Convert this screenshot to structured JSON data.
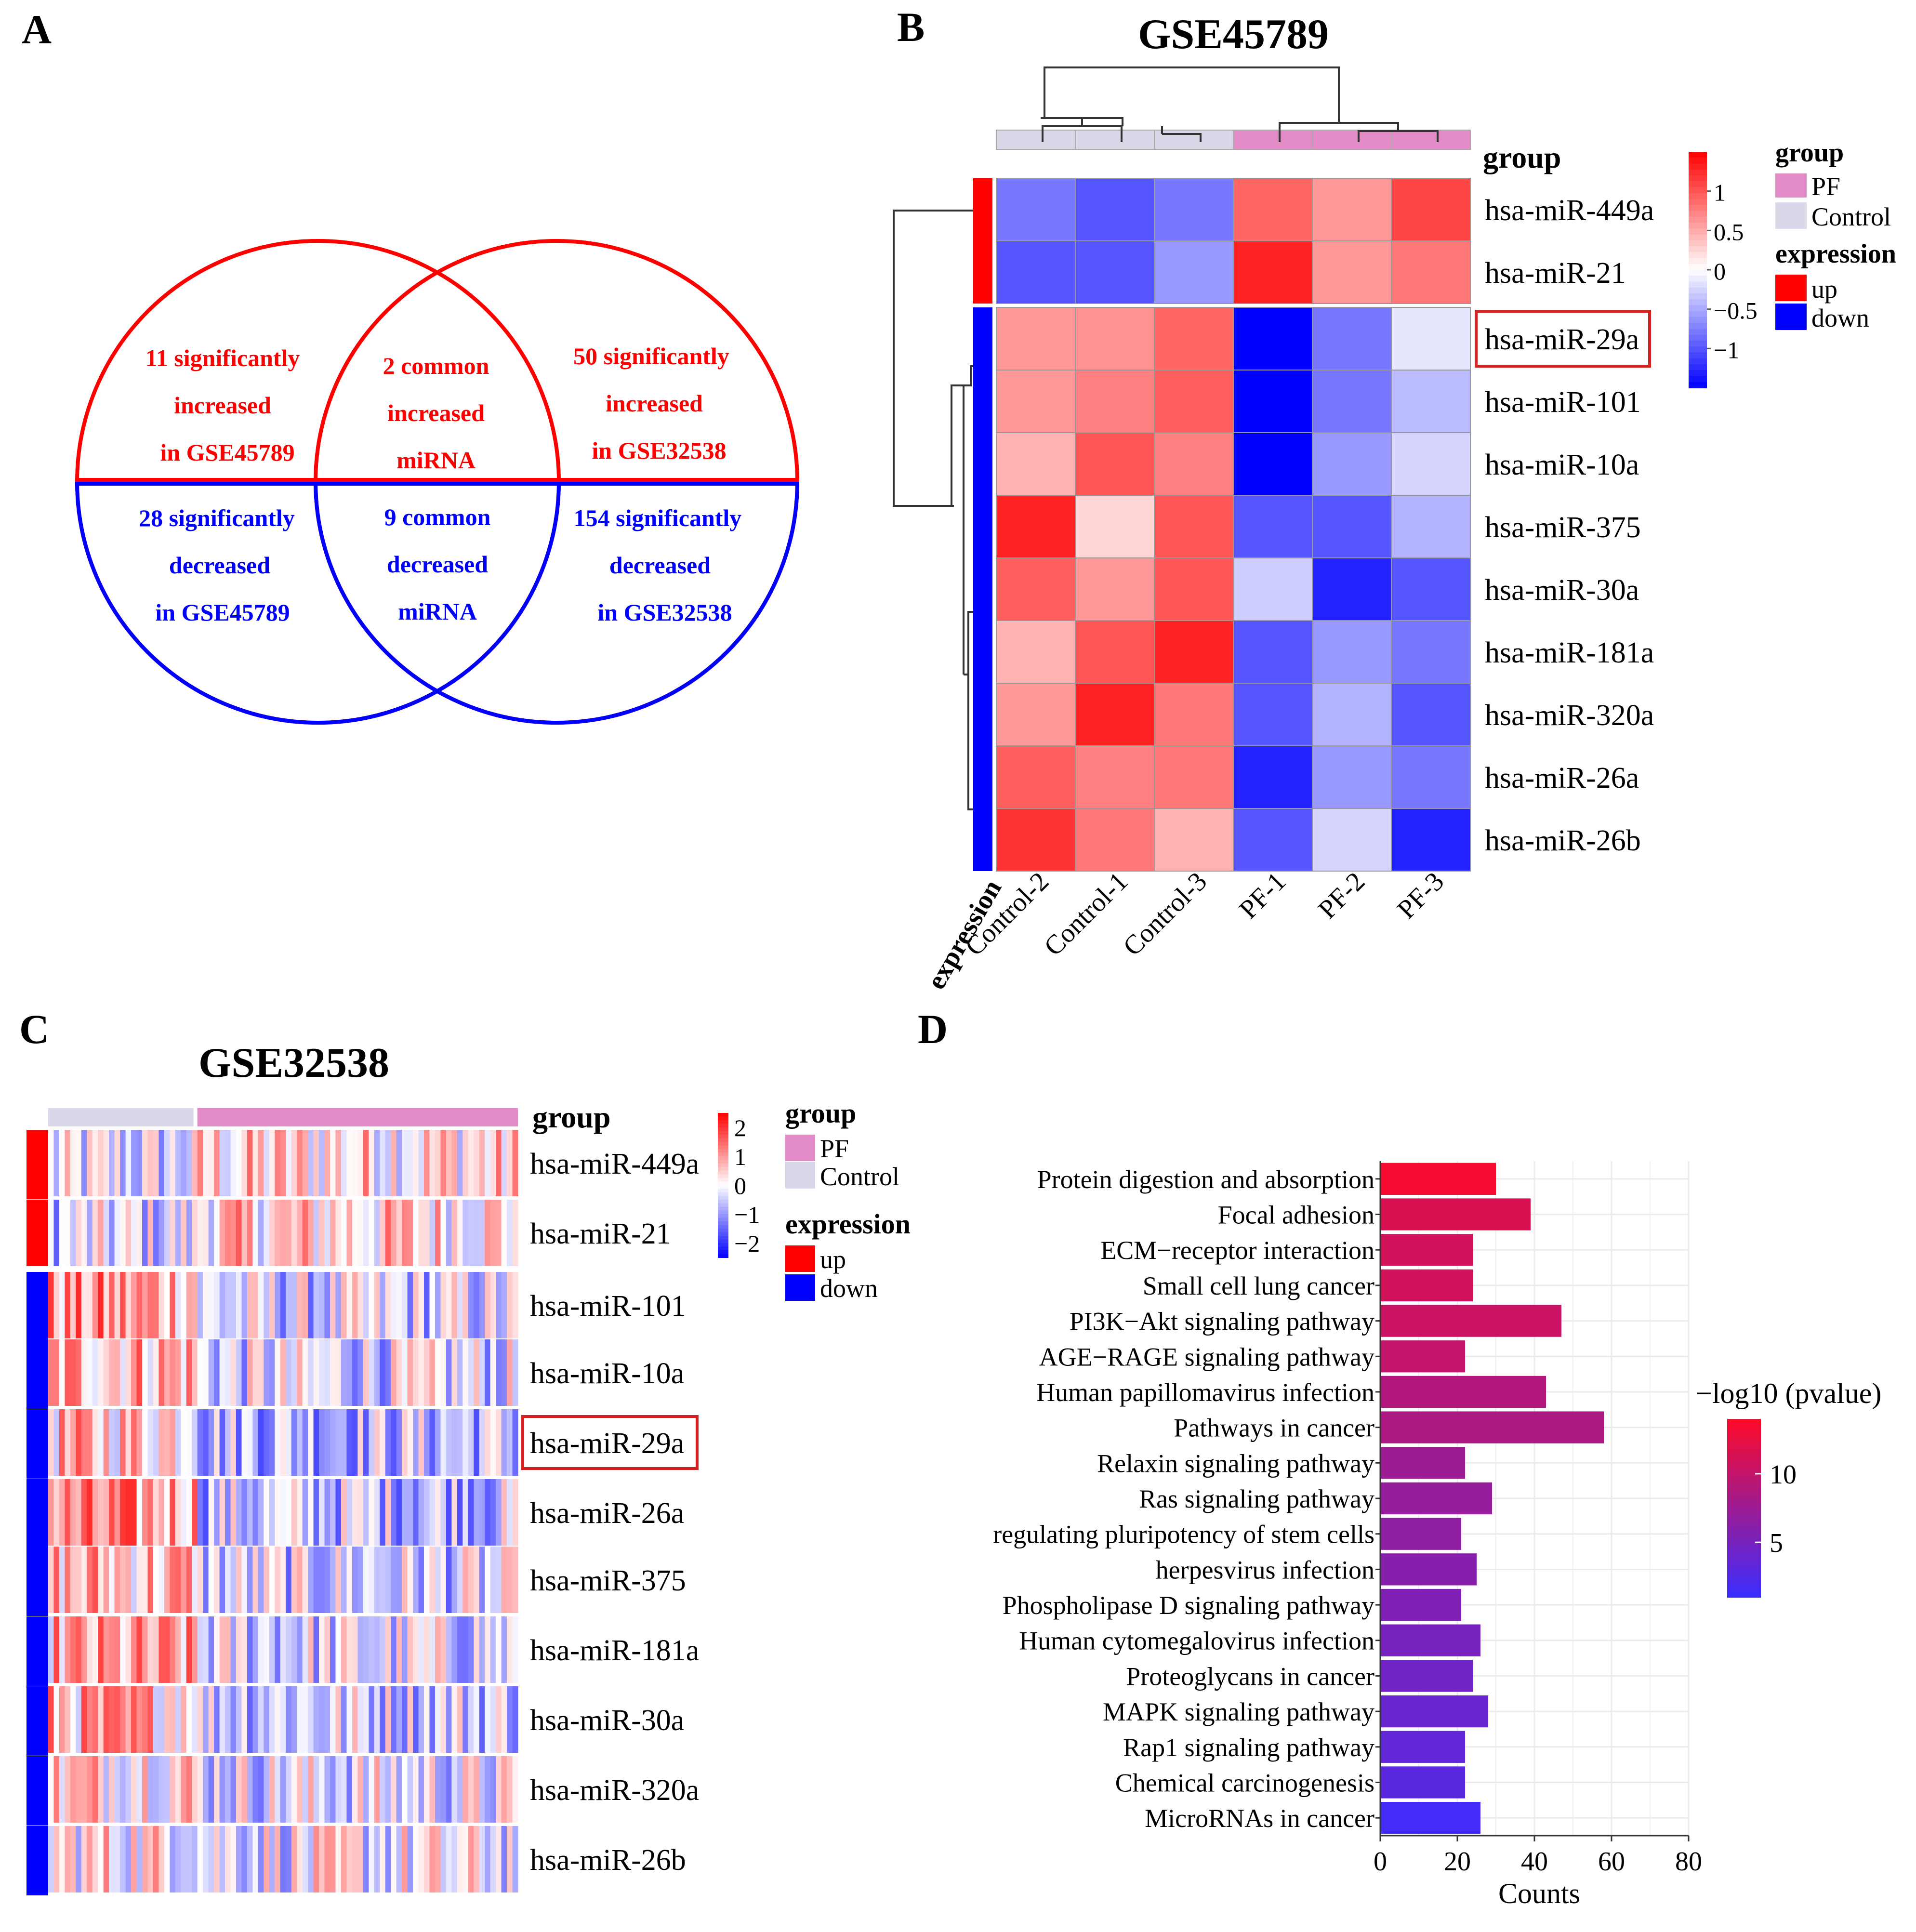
{
  "colors": {
    "up": "#ff0000",
    "down": "#0000ff",
    "pf": "#e38bc6",
    "control": "#d8d8e8",
    "heat_low": "#0000ff",
    "heat_mid": "#ffffff",
    "heat_high": "#ff0000",
    "kegg_low": "#3b2dff",
    "kegg_high": "#ff0a28"
  },
  "panels": {
    "a": "A",
    "b": "B",
    "c": "C",
    "d": "D"
  },
  "venn": {
    "top_left": [
      "11 significantly",
      "increased",
      "in GSE45789"
    ],
    "top_mid": [
      "2 common",
      "increased",
      "miRNA"
    ],
    "top_right": [
      "50 significantly",
      "increased",
      "in GSE32538"
    ],
    "bot_left": [
      "28 significantly",
      "decreased",
      "in GSE45789"
    ],
    "bot_mid": [
      "9 common",
      "decreased",
      "miRNA"
    ],
    "bot_right": [
      "154 significantly",
      "decreased",
      "in GSE32538"
    ]
  },
  "legend": {
    "group": "group",
    "pf": "PF",
    "control": "Control",
    "expression": "expression",
    "up": "up",
    "down": "down"
  },
  "chart_data": [
    {
      "type": "heatmap",
      "title": "GSE45789",
      "columns": [
        "Control-2",
        "Control-1",
        "Control-3",
        "PF-1",
        "PF-2",
        "PF-3"
      ],
      "column_groups": [
        "Control",
        "Control",
        "Control",
        "PF",
        "PF",
        "PF"
      ],
      "rows": [
        "hsa-miR-449a",
        "hsa-miR-21",
        "hsa-miR-29a",
        "hsa-miR-101",
        "hsa-miR-10a",
        "hsa-miR-375",
        "hsa-miR-30a",
        "hsa-miR-181a",
        "hsa-miR-320a",
        "hsa-miR-26a",
        "hsa-miR-26b"
      ],
      "row_groups": [
        "up",
        "up",
        "down",
        "down",
        "down",
        "down",
        "down",
        "down",
        "down",
        "down",
        "down"
      ],
      "highlight_row": "hsa-miR-29a",
      "values": [
        [
          -0.8,
          -1.0,
          -0.8,
          0.9,
          0.6,
          1.1
        ],
        [
          -1.0,
          -1.0,
          -0.6,
          1.3,
          0.6,
          0.8
        ],
        [
          0.6,
          0.65,
          0.9,
          -1.5,
          -0.8,
          -0.15
        ],
        [
          0.6,
          0.75,
          0.95,
          -1.5,
          -0.8,
          -0.4
        ],
        [
          0.45,
          1.0,
          0.75,
          -1.5,
          -0.6,
          -0.25
        ],
        [
          1.3,
          0.25,
          1.0,
          -1.0,
          -1.0,
          -0.45
        ],
        [
          0.95,
          0.6,
          1.0,
          -0.3,
          -1.3,
          -1.0
        ],
        [
          0.45,
          1.0,
          1.3,
          -1.0,
          -0.6,
          -0.8
        ],
        [
          0.6,
          1.3,
          0.8,
          -1.0,
          -0.45,
          -1.0
        ],
        [
          0.95,
          0.75,
          0.8,
          -1.3,
          -0.6,
          -0.8
        ],
        [
          1.2,
          0.8,
          0.45,
          -1.0,
          -0.25,
          -1.3
        ]
      ],
      "legend_ticks": [
        1,
        0.5,
        0,
        -0.5,
        -1
      ],
      "legend_tick_labels": [
        "1",
        "0.5",
        "0",
        "−0.5",
        "−1"
      ],
      "legend_range": [
        -1.5,
        1.5
      ],
      "row_annotation_label": "expression",
      "column_annotation_label": "group"
    },
    {
      "type": "heatmap",
      "title": "GSE32538",
      "column_groups_counts": {
        "Control": 27,
        "PF": 58
      },
      "rows": [
        "hsa-miR-449a",
        "hsa-miR-21",
        "hsa-miR-101",
        "hsa-miR-10a",
        "hsa-miR-29a",
        "hsa-miR-26a",
        "hsa-miR-375",
        "hsa-miR-181a",
        "hsa-miR-30a",
        "hsa-miR-320a",
        "hsa-miR-26b"
      ],
      "row_groups": [
        "up",
        "up",
        "down",
        "down",
        "down",
        "down",
        "down",
        "down",
        "down",
        "down",
        "down"
      ],
      "highlight_row": "hsa-miR-29a",
      "row_means": {
        "Control": [
          -0.3,
          -0.3,
          0.8,
          0.7,
          0.5,
          0.8,
          0.6,
          0.6,
          0.6,
          0.4,
          0.2
        ],
        "PF": [
          0.3,
          0.35,
          -0.35,
          -0.3,
          -0.5,
          -0.45,
          -0.35,
          -0.3,
          -0.3,
          -0.2,
          -0.1
        ]
      },
      "legend_ticks": [
        2,
        1,
        0,
        -1,
        -2
      ],
      "legend_tick_labels": [
        "2",
        "1",
        "0",
        "−1",
        "−2"
      ],
      "legend_range": [
        -2.5,
        2.5
      ],
      "column_annotation_label": "group"
    },
    {
      "type": "bar",
      "orientation": "horizontal",
      "categories": [
        "Protein digestion and absorption",
        "Focal adhesion",
        "ECM−receptor interaction",
        "Small cell lung cancer",
        "PI3K−Akt signaling pathway",
        "AGE−RAGE signaling pathway",
        "Human papillomavirus infection",
        "Pathways in cancer",
        "Relaxin signaling pathway",
        "Ras signaling pathway",
        "regulating pluripotency of stem cells",
        "herpesvirus infection",
        "Phospholipase D signaling pathway",
        "Human cytomegalovirus infection",
        "Proteoglycans in cancer",
        "MAPK signaling pathway",
        "Rap1 signaling pathway",
        "Chemical carcinogenesis",
        "MicroRNAs in cancer"
      ],
      "values": [
        30,
        39,
        24,
        24,
        47,
        22,
        43,
        58,
        22,
        29,
        21,
        25,
        21,
        26,
        24,
        28,
        22,
        22,
        26
      ],
      "color_values": [
        13.5,
        11.5,
        11,
        11,
        10.5,
        10,
        9,
        8.5,
        7.5,
        7,
        6.5,
        6,
        5.5,
        5,
        4.5,
        4,
        3.5,
        3,
        1.5
      ],
      "color_label": "−log10 (pvalue)",
      "color_ticks": [
        10,
        5
      ],
      "color_range": [
        1,
        14
      ],
      "xlabel": "Counts",
      "xticks": [
        0,
        20,
        40,
        60,
        80
      ],
      "xlim": [
        0,
        80
      ],
      "grid": true
    }
  ]
}
